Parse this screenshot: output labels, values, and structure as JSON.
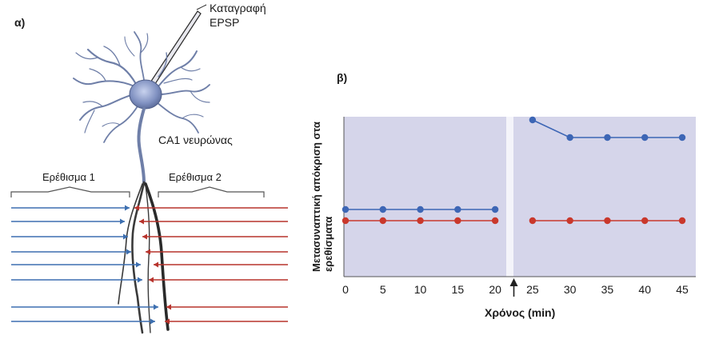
{
  "panel_a": {
    "label": "α)",
    "recording_label_line1": "Καταγραφή",
    "recording_label_line2": "EPSP",
    "neuron_label": "CA1 νευρώνας",
    "stimulus1_label": "Ερέθισμα 1",
    "stimulus2_label": "Ερέθισμα 2",
    "colors": {
      "pathway1": "#3d6fb0",
      "pathway2": "#b7332c",
      "neuron": "#6f7fa8"
    }
  },
  "panel_b": {
    "label": "β)",
    "ylabel": "Μετασυναπτική απόκριση στα ερεθίσματα",
    "ylabel_line1": "Μετασυναπτική απόκριση στα",
    "ylabel_line2": "ερεθίσματα",
    "xlabel": "Χρόνος (min)"
  },
  "chart_data": {
    "type": "line",
    "x_ticks": [
      0,
      5,
      10,
      15,
      20,
      25,
      30,
      35,
      40,
      45
    ],
    "xlim": [
      0,
      45
    ],
    "ylim": [
      0,
      1
    ],
    "grid": false,
    "series": [
      {
        "color": "#3d66b5",
        "x": [
          0,
          5,
          10,
          15,
          20,
          25,
          30,
          35,
          40,
          45
        ],
        "y": [
          0.42,
          0.42,
          0.42,
          0.42,
          0.42,
          0.98,
          0.87,
          0.87,
          0.87,
          0.87
        ],
        "break_after_index": 4
      },
      {
        "color": "#c9382c",
        "x": [
          0,
          5,
          10,
          15,
          20,
          25,
          30,
          35,
          40,
          45
        ],
        "y": [
          0.35,
          0.35,
          0.35,
          0.35,
          0.35,
          0.35,
          0.35,
          0.35,
          0.35,
          0.35
        ],
        "break_after_index": 4
      }
    ],
    "annotation_arrow_x": 22.5,
    "colors": {
      "plot_background": "#d5d5ea",
      "divider": "#f4f4fa"
    }
  }
}
